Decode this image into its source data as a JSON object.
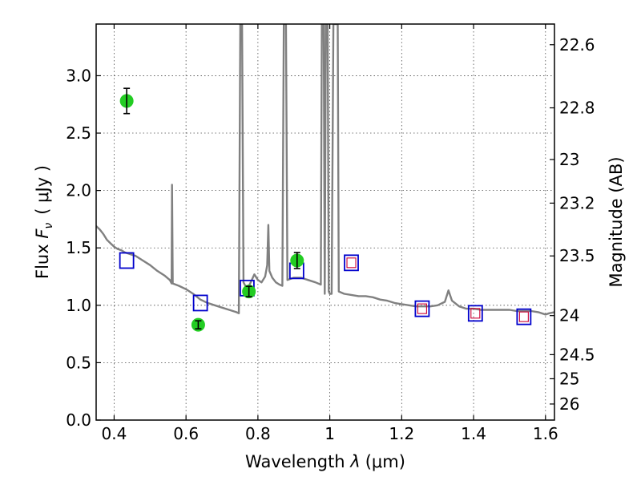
{
  "chart_data": {
    "type": "scatter",
    "xlabel_prefix": "Wavelength ",
    "xlabel_symbol": "λ",
    "xlabel_unit": "(μm)",
    "ylabel_prefix": "Flux ",
    "ylabel_symbol": "F",
    "ylabel_subscript": "ν",
    "ylabel_unit": "( μJy )",
    "y2label": "Magnitude (AB)",
    "xlim": [
      0.35,
      1.625
    ],
    "ylim": [
      0.0,
      3.45
    ],
    "x_ticks": [
      0.4,
      0.6,
      0.8,
      1.0,
      1.2,
      1.4,
      1.6
    ],
    "x_tick_labels": [
      "0.4",
      "0.6",
      "0.8",
      "1",
      "1.2",
      "1.4",
      "1.6"
    ],
    "y_ticks": [
      0.0,
      0.5,
      1.0,
      1.5,
      2.0,
      2.5,
      3.0
    ],
    "y_tick_labels": [
      "0.0",
      "0.5",
      "1.0",
      "1.5",
      "2.0",
      "2.5",
      "3.0"
    ],
    "y2_ticks": [
      {
        "label": "22.6",
        "flux": 3.27
      },
      {
        "label": "22.8",
        "flux": 2.72
      },
      {
        "label": "23",
        "flux": 2.27
      },
      {
        "label": "23.2",
        "flux": 1.89
      },
      {
        "label": "23.5",
        "flux": 1.43
      },
      {
        "label": "24",
        "flux": 0.91
      },
      {
        "label": "24.5",
        "flux": 0.57
      },
      {
        "label": "25",
        "flux": 0.36
      },
      {
        "label": "26",
        "flux": 0.14
      }
    ],
    "grid": true,
    "colors": {
      "model": "#808080",
      "observed": "#22cc22",
      "model_box": "#0000cc",
      "model_inner": "#cc0033"
    },
    "series": [
      {
        "kind": "line",
        "points": [
          [
            0.35,
            1.69
          ],
          [
            0.36,
            1.66
          ],
          [
            0.37,
            1.62
          ],
          [
            0.38,
            1.57
          ],
          [
            0.39,
            1.54
          ],
          [
            0.4,
            1.51
          ],
          [
            0.41,
            1.49
          ],
          [
            0.42,
            1.48
          ],
          [
            0.43,
            1.46
          ],
          [
            0.44,
            1.45
          ],
          [
            0.45,
            1.44
          ],
          [
            0.46,
            1.43
          ],
          [
            0.47,
            1.41
          ],
          [
            0.48,
            1.39
          ],
          [
            0.5,
            1.35
          ],
          [
            0.52,
            1.3
          ],
          [
            0.54,
            1.26
          ],
          [
            0.555,
            1.22
          ],
          [
            0.56,
            1.19
          ],
          [
            0.561,
            2.05
          ],
          [
            0.563,
            1.19
          ],
          [
            0.58,
            1.17
          ],
          [
            0.6,
            1.14
          ],
          [
            0.62,
            1.1
          ],
          [
            0.64,
            1.05
          ],
          [
            0.66,
            1.02
          ],
          [
            0.68,
            1.0
          ],
          [
            0.7,
            0.98
          ],
          [
            0.72,
            0.96
          ],
          [
            0.74,
            0.94
          ],
          [
            0.747,
            0.93
          ],
          [
            0.751,
            3.45
          ],
          [
            0.756,
            3.45
          ],
          [
            0.76,
            1.2
          ],
          [
            0.77,
            1.14
          ],
          [
            0.78,
            1.2
          ],
          [
            0.79,
            1.27
          ],
          [
            0.8,
            1.22
          ],
          [
            0.81,
            1.2
          ],
          [
            0.82,
            1.25
          ],
          [
            0.826,
            1.35
          ],
          [
            0.829,
            1.7
          ],
          [
            0.832,
            1.3
          ],
          [
            0.84,
            1.24
          ],
          [
            0.85,
            1.2
          ],
          [
            0.86,
            1.18
          ],
          [
            0.868,
            1.17
          ],
          [
            0.872,
            3.45
          ],
          [
            0.878,
            3.45
          ],
          [
            0.882,
            1.22
          ],
          [
            0.9,
            1.24
          ],
          [
            0.92,
            1.24
          ],
          [
            0.94,
            1.22
          ],
          [
            0.96,
            1.2
          ],
          [
            0.975,
            1.18
          ],
          [
            0.978,
            3.45
          ],
          [
            0.983,
            3.45
          ],
          [
            0.986,
            1.1
          ],
          [
            0.989,
            3.45
          ],
          [
            0.994,
            3.45
          ],
          [
            0.997,
            1.12
          ],
          [
            1.0,
            1.1
          ],
          [
            1.005,
            1.1
          ],
          [
            1.01,
            3.45
          ],
          [
            1.022,
            3.45
          ],
          [
            1.025,
            1.12
          ],
          [
            1.04,
            1.1
          ],
          [
            1.06,
            1.09
          ],
          [
            1.08,
            1.08
          ],
          [
            1.1,
            1.08
          ],
          [
            1.12,
            1.07
          ],
          [
            1.14,
            1.05
          ],
          [
            1.16,
            1.04
          ],
          [
            1.18,
            1.02
          ],
          [
            1.2,
            1.01
          ],
          [
            1.22,
            1.0
          ],
          [
            1.24,
            0.99
          ],
          [
            1.26,
            0.99
          ],
          [
            1.28,
            0.99
          ],
          [
            1.3,
            1.0
          ],
          [
            1.32,
            1.03
          ],
          [
            1.33,
            1.13
          ],
          [
            1.34,
            1.04
          ],
          [
            1.36,
            0.99
          ],
          [
            1.38,
            0.97
          ],
          [
            1.4,
            0.97
          ],
          [
            1.42,
            0.96
          ],
          [
            1.44,
            0.96
          ],
          [
            1.46,
            0.96
          ],
          [
            1.48,
            0.96
          ],
          [
            1.5,
            0.96
          ],
          [
            1.52,
            0.95
          ],
          [
            1.54,
            0.95
          ],
          [
            1.56,
            0.95
          ],
          [
            1.58,
            0.94
          ],
          [
            1.6,
            0.92
          ],
          [
            1.61,
            0.93
          ],
          [
            1.625,
            0.94
          ]
        ]
      },
      {
        "kind": "observed_points",
        "points": [
          {
            "x": 0.435,
            "y": 2.78,
            "err": 0.11
          },
          {
            "x": 0.634,
            "y": 0.83,
            "err": 0.035
          },
          {
            "x": 0.775,
            "y": 1.12,
            "err": 0.045
          },
          {
            "x": 0.909,
            "y": 1.39,
            "err": 0.07
          }
        ]
      },
      {
        "kind": "model_boxes",
        "points": [
          {
            "x": 0.435,
            "y": 1.39
          },
          {
            "x": 0.64,
            "y": 1.02
          },
          {
            "x": 0.77,
            "y": 1.15
          },
          {
            "x": 0.908,
            "y": 1.3
          },
          {
            "x": 1.06,
            "y": 1.37,
            "inner": true
          },
          {
            "x": 1.257,
            "y": 0.97,
            "inner": true
          },
          {
            "x": 1.405,
            "y": 0.93,
            "inner": true
          },
          {
            "x": 1.54,
            "y": 0.9,
            "inner": true
          }
        ]
      }
    ]
  }
}
